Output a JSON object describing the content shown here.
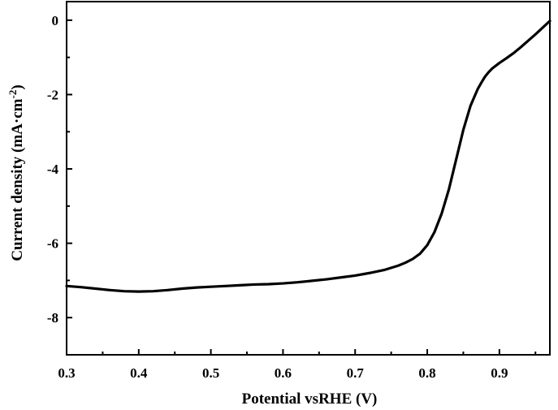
{
  "chart_data": {
    "type": "line",
    "title": "",
    "xlabel": "Potential vsRHE (V)",
    "ylabel": {
      "main": "Current density (mA·cm",
      "superscript": "-2",
      "close": ")"
    },
    "xlim": [
      0.3,
      0.97
    ],
    "ylim": [
      -9.0,
      0.5
    ],
    "x_ticks": [
      "0.3",
      "0.4",
      "0.5",
      "0.6",
      "0.7",
      "0.8",
      "0.9"
    ],
    "x_tick_values": [
      0.3,
      0.4,
      0.5,
      0.6,
      0.7,
      0.8,
      0.9
    ],
    "y_ticks": [
      "0",
      "-2",
      "-4",
      "-6",
      "-8"
    ],
    "y_tick_values": [
      0,
      -2,
      -4,
      -6,
      -8
    ],
    "grid": false,
    "line_color": "#000000",
    "series": [
      {
        "x": [
          0.3,
          0.32,
          0.34,
          0.36,
          0.38,
          0.4,
          0.42,
          0.44,
          0.46,
          0.48,
          0.5,
          0.52,
          0.54,
          0.56,
          0.58,
          0.6,
          0.62,
          0.64,
          0.66,
          0.68,
          0.7,
          0.72,
          0.74,
          0.75,
          0.76,
          0.77,
          0.78,
          0.79,
          0.8,
          0.81,
          0.82,
          0.83,
          0.84,
          0.85,
          0.86,
          0.87,
          0.875,
          0.88,
          0.885,
          0.89,
          0.9,
          0.91,
          0.92,
          0.93,
          0.94,
          0.95,
          0.96,
          0.97
        ],
        "values": [
          -7.15,
          -7.18,
          -7.22,
          -7.26,
          -7.29,
          -7.3,
          -7.29,
          -7.26,
          -7.22,
          -7.19,
          -7.17,
          -7.15,
          -7.13,
          -7.11,
          -7.1,
          -7.08,
          -7.05,
          -7.01,
          -6.97,
          -6.92,
          -6.87,
          -6.8,
          -6.72,
          -6.66,
          -6.6,
          -6.52,
          -6.42,
          -6.28,
          -6.05,
          -5.7,
          -5.2,
          -4.55,
          -3.75,
          -2.95,
          -2.3,
          -1.85,
          -1.68,
          -1.52,
          -1.4,
          -1.3,
          -1.15,
          -1.02,
          -0.88,
          -0.72,
          -0.55,
          -0.38,
          -0.2,
          -0.02
        ]
      }
    ]
  }
}
